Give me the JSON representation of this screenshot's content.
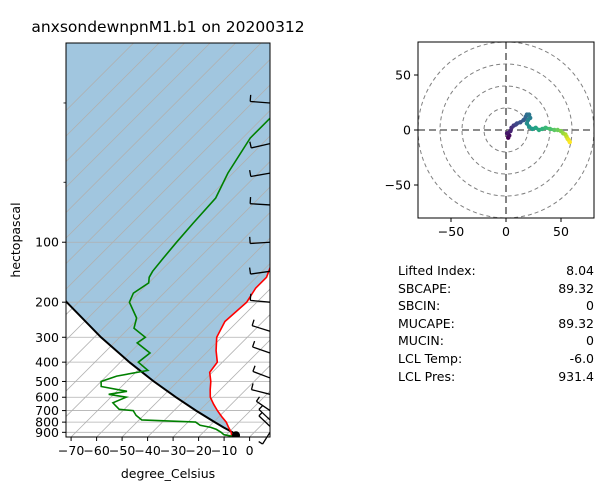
{
  "title": "anxsondewnpnM1.b1 on 20200312",
  "indices": [
    {
      "label": "Lifted Index:",
      "value": "8.04"
    },
    {
      "label": "SBCAPE:",
      "value": "89.32"
    },
    {
      "label": "SBCIN:",
      "value": "0"
    },
    {
      "label": "MUCAPE:",
      "value": "89.32"
    },
    {
      "label": "MUCIN:",
      "value": "0"
    },
    {
      "label": "LCL Temp:",
      "value": "-6.0"
    },
    {
      "label": "LCL Pres:",
      "value": "931.4"
    }
  ],
  "colors": {
    "cape_fill": "#a1c6df",
    "temperature": "#ff0000",
    "dewpoint": "#008000",
    "parcel": "#000000",
    "grid": "#b0b0b0",
    "hodo_ring": "#808080"
  },
  "chart_data": [
    {
      "type": "line",
      "name": "skew-t",
      "xlabel": "degree_Celsius",
      "ylabel": "hectopascal",
      "xlim": [
        -72,
        8
      ],
      "ylim": [
        950,
        10
      ],
      "y_scale": "log",
      "x_ticks": [
        -70,
        -60,
        -50,
        -40,
        -30,
        -20,
        -10,
        0
      ],
      "x_tick_labels": [
        "−70",
        "−60",
        "−50",
        "−40",
        "−30",
        "−20",
        "−10",
        "0"
      ],
      "y_ticks": [
        100,
        200,
        300,
        400,
        500,
        600,
        700,
        800,
        900
      ],
      "y_tick_labels": [
        "100",
        "200",
        "300",
        "400",
        "500",
        "600",
        "700",
        "800",
        "900"
      ],
      "grid": true,
      "series": [
        {
          "key": "temperature",
          "p": [
            942,
            925,
            900,
            850,
            800,
            750,
            700,
            650,
            600,
            550,
            500,
            450,
            400,
            350,
            300,
            250,
            200,
            170,
            150,
            130,
            110,
            95,
            85,
            75,
            60,
            50,
            40,
            30
          ],
          "T": [
            -6,
            -8,
            -9,
            -12,
            -15,
            -19,
            -23,
            -27,
            -31,
            -34,
            -37,
            -41,
            -42,
            -47,
            -52,
            -55,
            -54,
            -56,
            -56,
            -59,
            -60,
            -64,
            -66,
            -70,
            -72,
            -77,
            -82,
            -87
          ]
        },
        {
          "key": "dewpoint",
          "p": [
            942,
            925,
            900,
            870,
            850,
            830,
            800,
            780,
            740,
            700,
            690,
            660,
            640,
            600,
            580,
            560,
            530,
            500,
            470,
            440,
            400,
            360,
            320,
            300,
            270,
            240,
            200,
            180,
            160,
            150,
            140,
            120,
            100,
            80,
            60,
            45,
            30,
            20,
            15
          ],
          "T": [
            -7,
            -11,
            -13,
            -16,
            -19,
            -24,
            -27,
            -49,
            -53,
            -56,
            -62,
            -65,
            -67,
            -64,
            -72,
            -66,
            -78,
            -80,
            -76,
            -66,
            -73,
            -72,
            -81,
            -80,
            -88,
            -91,
            -100,
            -102,
            -100,
            -102,
            -103,
            -104,
            -105,
            -106,
            -107,
            -112,
            -117,
            -117,
            -122
          ]
        },
        {
          "key": "parcel",
          "p": [
            942,
            931.4,
            900,
            850,
            800,
            700,
            600,
            500,
            400,
            300,
            200,
            150
          ],
          "T": [
            -6,
            -6.0,
            -8.5,
            -14,
            -19.5,
            -31.4,
            -44.5,
            -59.3,
            -76.5,
            -97.4,
            -124.6,
            -142.5
          ]
        }
      ],
      "wind_barbs": {
        "p": [
          20,
          32,
          45,
          65,
          100,
          140,
          200,
          280,
          360,
          480,
          580,
          700,
          780,
          840,
          900
        ],
        "u": [
          25,
          22,
          18,
          20,
          20,
          18,
          14,
          12,
          18,
          20,
          15,
          13,
          10,
          8,
          4
        ],
        "v": [
          -3,
          8,
          5,
          -2,
          2,
          4,
          -2,
          -6,
          -10,
          -12,
          -6,
          -14,
          -15,
          -12,
          10
        ]
      }
    },
    {
      "type": "scatter",
      "name": "hodograph",
      "xlim": [
        -80,
        80
      ],
      "ylim": [
        -80,
        80
      ],
      "ticks": [
        -50,
        0,
        50
      ],
      "tick_labels": [
        "−50",
        "0",
        "50"
      ],
      "rings": [
        20,
        40,
        60,
        80
      ],
      "colormap": "viridis",
      "u": [
        2,
        3,
        1,
        4,
        5,
        7,
        9,
        10,
        13,
        16,
        18,
        19,
        21,
        22,
        20,
        19,
        21,
        24,
        27,
        30,
        33,
        36,
        40,
        44,
        47,
        50,
        52,
        54,
        55,
        56,
        57,
        58
      ],
      "v": [
        -7,
        -5,
        -3,
        -1,
        2,
        4,
        5,
        6,
        7,
        9,
        12,
        14,
        14,
        11,
        9,
        6,
        3,
        1,
        2,
        0,
        1,
        2,
        1,
        0,
        0,
        -1,
        -3,
        -4,
        -6,
        -8,
        -9,
        -11
      ]
    }
  ]
}
